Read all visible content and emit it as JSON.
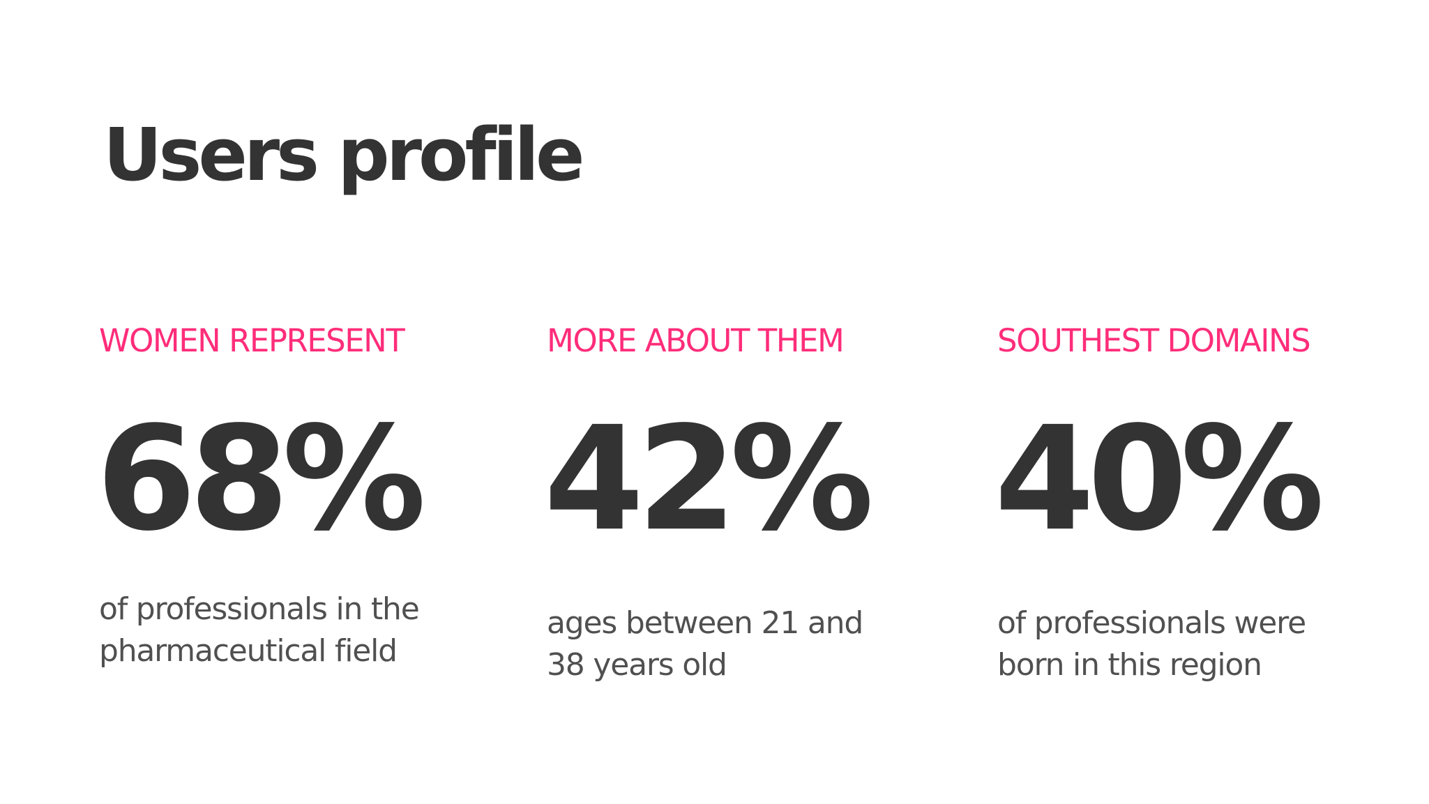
{
  "title": "Users profile",
  "accent_color": "#ff2d7a",
  "text_color": "#333333",
  "stats": [
    {
      "label": "WOMEN REPRESENT",
      "value": "68%",
      "description_lines": [
        "of professionals in the",
        "pharmaceutical field"
      ]
    },
    {
      "label": "MORE ABOUT THEM",
      "value": "42%",
      "description_lines": [
        "ages between 21 and",
        "38 years old"
      ]
    },
    {
      "label": "SOUTHEST DOMAINS",
      "value": "40%",
      "description_lines": [
        "of professionals were",
        "born in this region"
      ]
    }
  ]
}
